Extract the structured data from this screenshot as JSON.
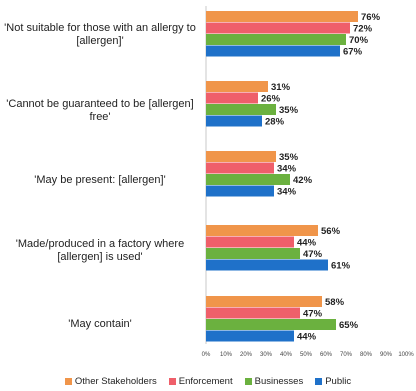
{
  "chart_data": {
    "type": "bar",
    "orientation": "horizontal",
    "categories": [
      "'Not suitable for those with an allergy to [allergen]'",
      "'Cannot be guaranteed to be [allergen] free'",
      "'May be present: [allergen]'",
      "'Made/produced in a factory where [allergen] is used'",
      "'May contain'"
    ],
    "series": [
      {
        "name": "Other Stakeholders",
        "color": "#f0954a",
        "values": [
          76,
          31,
          35,
          56,
          58
        ]
      },
      {
        "name": "Enforcement",
        "color": "#ef5f6a",
        "values": [
          72,
          26,
          34,
          44,
          47
        ]
      },
      {
        "name": "Businesses",
        "color": "#6bb13f",
        "values": [
          70,
          35,
          42,
          47,
          65
        ]
      },
      {
        "name": "Public",
        "color": "#1f71c9",
        "values": [
          67,
          28,
          34,
          61,
          44
        ]
      }
    ],
    "value_suffix": "%",
    "xlim": [
      0,
      100
    ],
    "xticks": [
      "0%",
      "10%",
      "20%",
      "30%",
      "40%",
      "50%",
      "60%",
      "70%",
      "80%",
      "90%",
      "100%"
    ],
    "legend_position": "bottom",
    "grid": false
  }
}
